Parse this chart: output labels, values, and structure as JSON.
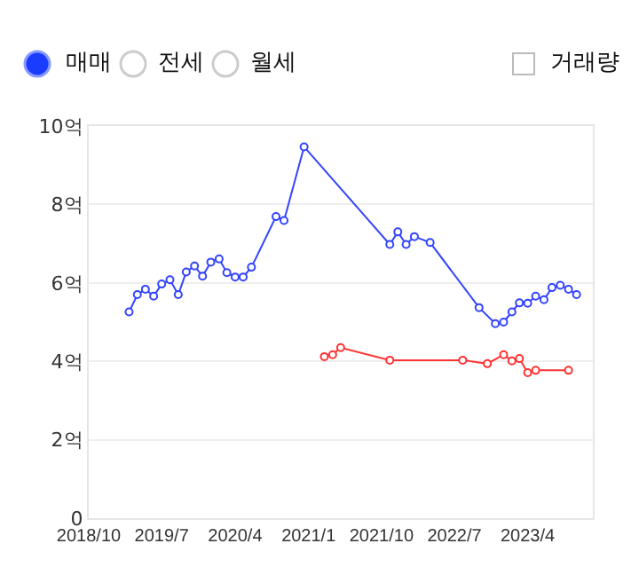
{
  "chart_data": {
    "type": "line",
    "annotations": [
      "매매",
      "전세",
      "월세",
      "거래량"
    ],
    "xlim": [
      "2018-10",
      "2023-12"
    ],
    "xticks": [
      {
        "value": "2018-10",
        "label": "2018/10"
      },
      {
        "value": "2019-07",
        "label": "2019/7"
      },
      {
        "value": "2020-04",
        "label": "2020/4"
      },
      {
        "value": "2021-01",
        "label": "2021/1"
      },
      {
        "value": "2021-10",
        "label": "2021/10"
      },
      {
        "value": "2022-07",
        "label": "2022/7"
      },
      {
        "value": "2023-04",
        "label": "2023/4"
      }
    ],
    "ylim": [
      0,
      10
    ],
    "yticks": [
      0,
      {
        "value": 2,
        "label": "2억"
      },
      {
        "value": 4,
        "label": "4억"
      },
      {
        "value": 6,
        "label": "6억"
      },
      {
        "value": 8,
        "label": "8억"
      },
      {
        "value": 10,
        "label": "10억"
      }
    ],
    "grid": "y",
    "marker": "circle",
    "line_style": "solid",
    "series": [
      {
        "color": "#3344ff",
        "x": [
          "2019-03",
          "2019-04",
          "2019-05",
          "2019-06",
          "2019-07",
          "2019-08",
          "2019-09",
          "2019-10",
          "2019-11",
          "2019-12",
          "2020-01",
          "2020-02",
          "2020-03",
          "2020-04",
          "2020-05",
          "2020-06",
          "2020-09",
          "2020-10",
          "2020-12-15",
          "2021-11",
          "2021-12",
          "2022-01",
          "2022-02",
          "2022-04",
          "2022-10",
          "2022-12",
          "2023-01",
          "2023-02",
          "2023-03",
          "2023-04",
          "2023-05",
          "2023-06",
          "2023-07",
          "2023-08",
          "2023-09",
          "2023-10"
        ],
        "values": [
          5.26,
          5.7,
          5.84,
          5.66,
          5.97,
          6.08,
          5.7,
          6.28,
          6.43,
          6.17,
          6.53,
          6.61,
          6.26,
          6.15,
          6.15,
          6.4,
          7.69,
          7.59,
          9.47,
          6.98,
          7.3,
          6.98,
          7.18,
          7.03,
          5.37,
          4.96,
          5.0,
          5.26,
          5.49,
          5.48,
          5.66,
          5.57,
          5.88,
          5.94,
          5.84,
          5.7
        ]
      },
      {
        "color": "#ff3333",
        "x": [
          "2021-03",
          "2021-04",
          "2021-05",
          "2021-11",
          "2022-08",
          "2022-11",
          "2023-01",
          "2023-02",
          "2023-03",
          "2023-04",
          "2023-05",
          "2023-09"
        ],
        "values": [
          4.12,
          4.17,
          4.35,
          4.03,
          4.03,
          3.94,
          4.17,
          4.01,
          4.07,
          3.71,
          3.77,
          3.77
        ]
      }
    ]
  }
}
